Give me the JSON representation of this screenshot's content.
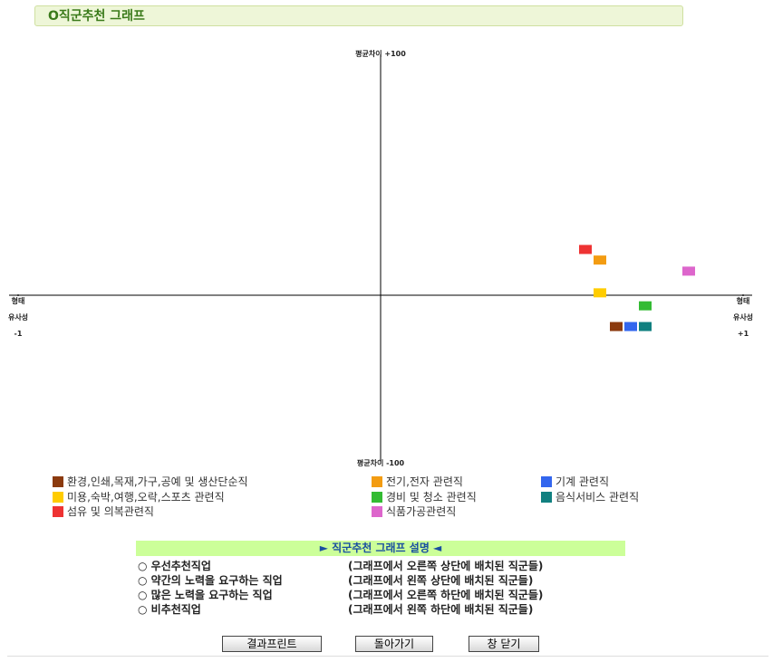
{
  "page_title": "O직군추천 그래프",
  "chart_data": {
    "type": "scatter",
    "xlim": [
      -1,
      1
    ],
    "ylim": [
      -100,
      100
    ],
    "xticks": [
      {
        "value": -1,
        "label": "형태\n유사성\n-1"
      },
      {
        "value": 1,
        "label": "형태\n유사성\n+1"
      }
    ],
    "yticks": [
      {
        "value": -100,
        "label": "평균차이 -100"
      },
      {
        "value": 100,
        "label": "평균차이 +100"
      }
    ],
    "series": [
      {
        "name": "환경,인쇄,목재,가구,공예 및 생산단순직",
        "color": "#8b3a0e",
        "x": [
          0.65
        ],
        "values": [
          -13
        ]
      },
      {
        "name": "전기,전자 관련직",
        "color": "#f39c12",
        "x": [
          0.605
        ],
        "values": [
          14.6
        ]
      },
      {
        "name": "기계 관련직",
        "color": "#3366ee",
        "x": [
          0.69
        ],
        "values": [
          -13
        ]
      },
      {
        "name": "미용,숙박,여행,오락,스포츠 관련직",
        "color": "#ffcc00",
        "x": [
          0.605
        ],
        "values": [
          1
        ]
      },
      {
        "name": "경비 및 청소 관련직",
        "color": "#33bb33",
        "x": [
          0.73
        ],
        "values": [
          -4.4
        ]
      },
      {
        "name": "음식서비스 관련직",
        "color": "#118080",
        "x": [
          0.73
        ],
        "values": [
          -13
        ]
      },
      {
        "name": "섬유 및 의복관련직",
        "color": "#ee3333",
        "x": [
          0.565
        ],
        "values": [
          19
        ]
      },
      {
        "name": "식품가공관련직",
        "color": "#dd66cc",
        "x": [
          0.85
        ],
        "values": [
          10
        ]
      }
    ]
  },
  "explanation": {
    "title": "► 직군추천 그래프 설명 ◄",
    "rows": [
      [
        "○ 우선추천직업",
        "(그래프에서 오른쪽 상단에 배치된 직군들)"
      ],
      [
        "○ 약간의 노력을 요구하는 직업",
        "(그래프에서 왼쪽 상단에 배치된 직군들)"
      ],
      [
        "○ 많은 노력을 요구하는 직업",
        "(그래프에서 오른쪽 하단에 배치된 직군들)"
      ],
      [
        "○ 비추천직업",
        "(그래프에서 왼쪽 하단에 배치된 직군들)"
      ]
    ]
  },
  "buttons": [
    "결과프린트",
    "돌아가기",
    "창 닫기"
  ]
}
